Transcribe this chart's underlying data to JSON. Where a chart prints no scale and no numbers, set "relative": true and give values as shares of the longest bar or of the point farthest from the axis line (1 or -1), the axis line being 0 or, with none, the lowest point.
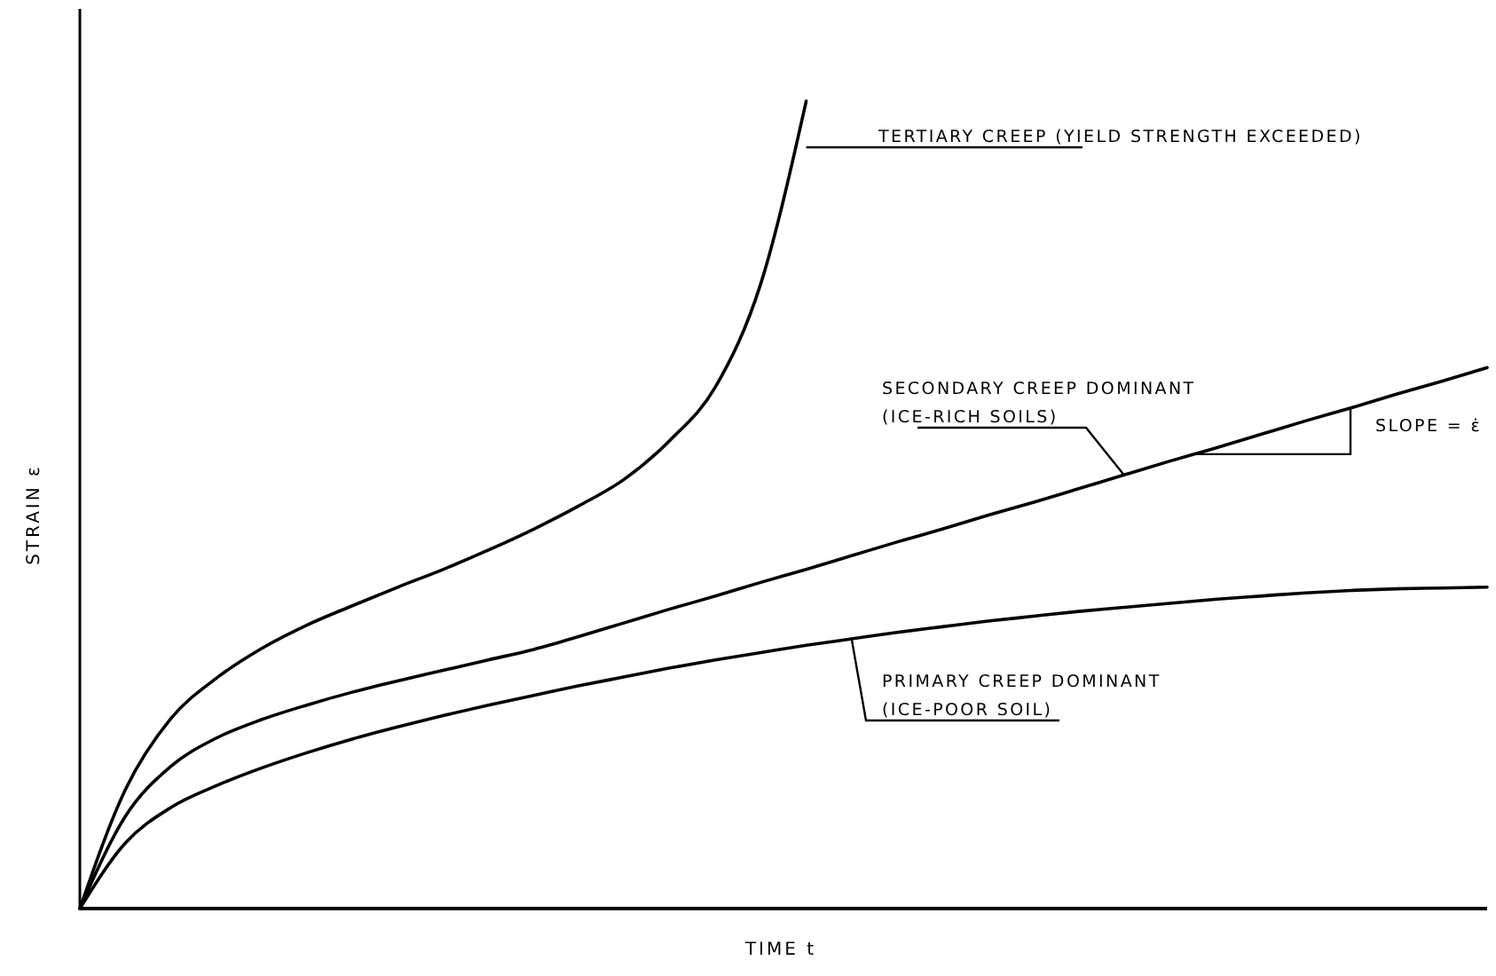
{
  "chart_data": {
    "type": "line",
    "relative": true,
    "xlabel": "TIME  t",
    "ylabel": "STRAIN  ε",
    "categories": [
      null,
      null,
      null,
      null,
      null,
      null,
      null,
      null,
      null,
      null,
      null,
      null,
      null,
      null,
      null,
      null,
      null,
      null,
      null,
      null,
      null,
      null,
      null,
      null,
      null,
      null,
      null,
      null,
      null,
      null,
      null,
      null
    ],
    "series": [
      {
        "name": "TERTIARY CREEP (YIELD STRENGTH EXCEEDED)",
        "color": "#000000",
        "values": [
          0,
          0.147,
          0.235,
          0.285,
          0.322,
          0.351,
          0.375,
          0.398,
          0.42,
          0.444,
          0.47,
          0.499,
          0.532,
          0.58,
          0.646,
          0.774,
          1,
          null,
          null,
          null,
          null,
          null,
          null,
          null,
          null,
          null,
          null,
          null,
          null,
          null,
          null,
          null
        ]
      },
      {
        "name": "SECONDARY CREEP DOMINANT (ICE-RICH SOILS)",
        "color": "#000000",
        "values": [
          0,
          0.114,
          0.176,
          0.211,
          0.234,
          0.252,
          0.268,
          0.282,
          0.295,
          0.308,
          0.321,
          0.337,
          0.354,
          0.371,
          0.387,
          0.404,
          0.42,
          0.437,
          0.454,
          0.47,
          0.487,
          0.503,
          0.52,
          0.537,
          0.554,
          0.57,
          0.587,
          0.604,
          0.62,
          0.637,
          0.653,
          0.67
        ]
      },
      {
        "name": "PRIMARY CREEP DOMINANT (ICE-POOR SOIL)",
        "color": "#000000",
        "values": [
          0,
          0.081,
          0.125,
          0.152,
          0.174,
          0.193,
          0.21,
          0.225,
          0.239,
          0.252,
          0.264,
          0.276,
          0.287,
          0.298,
          0.308,
          0.317,
          0.326,
          0.334,
          0.342,
          0.349,
          0.356,
          0.362,
          0.368,
          0.373,
          0.378,
          0.383,
          0.387,
          0.391,
          0.394,
          0.396,
          0.397,
          0.398
        ]
      }
    ],
    "annotations": [
      "SLOPE = ε̇"
    ]
  }
}
